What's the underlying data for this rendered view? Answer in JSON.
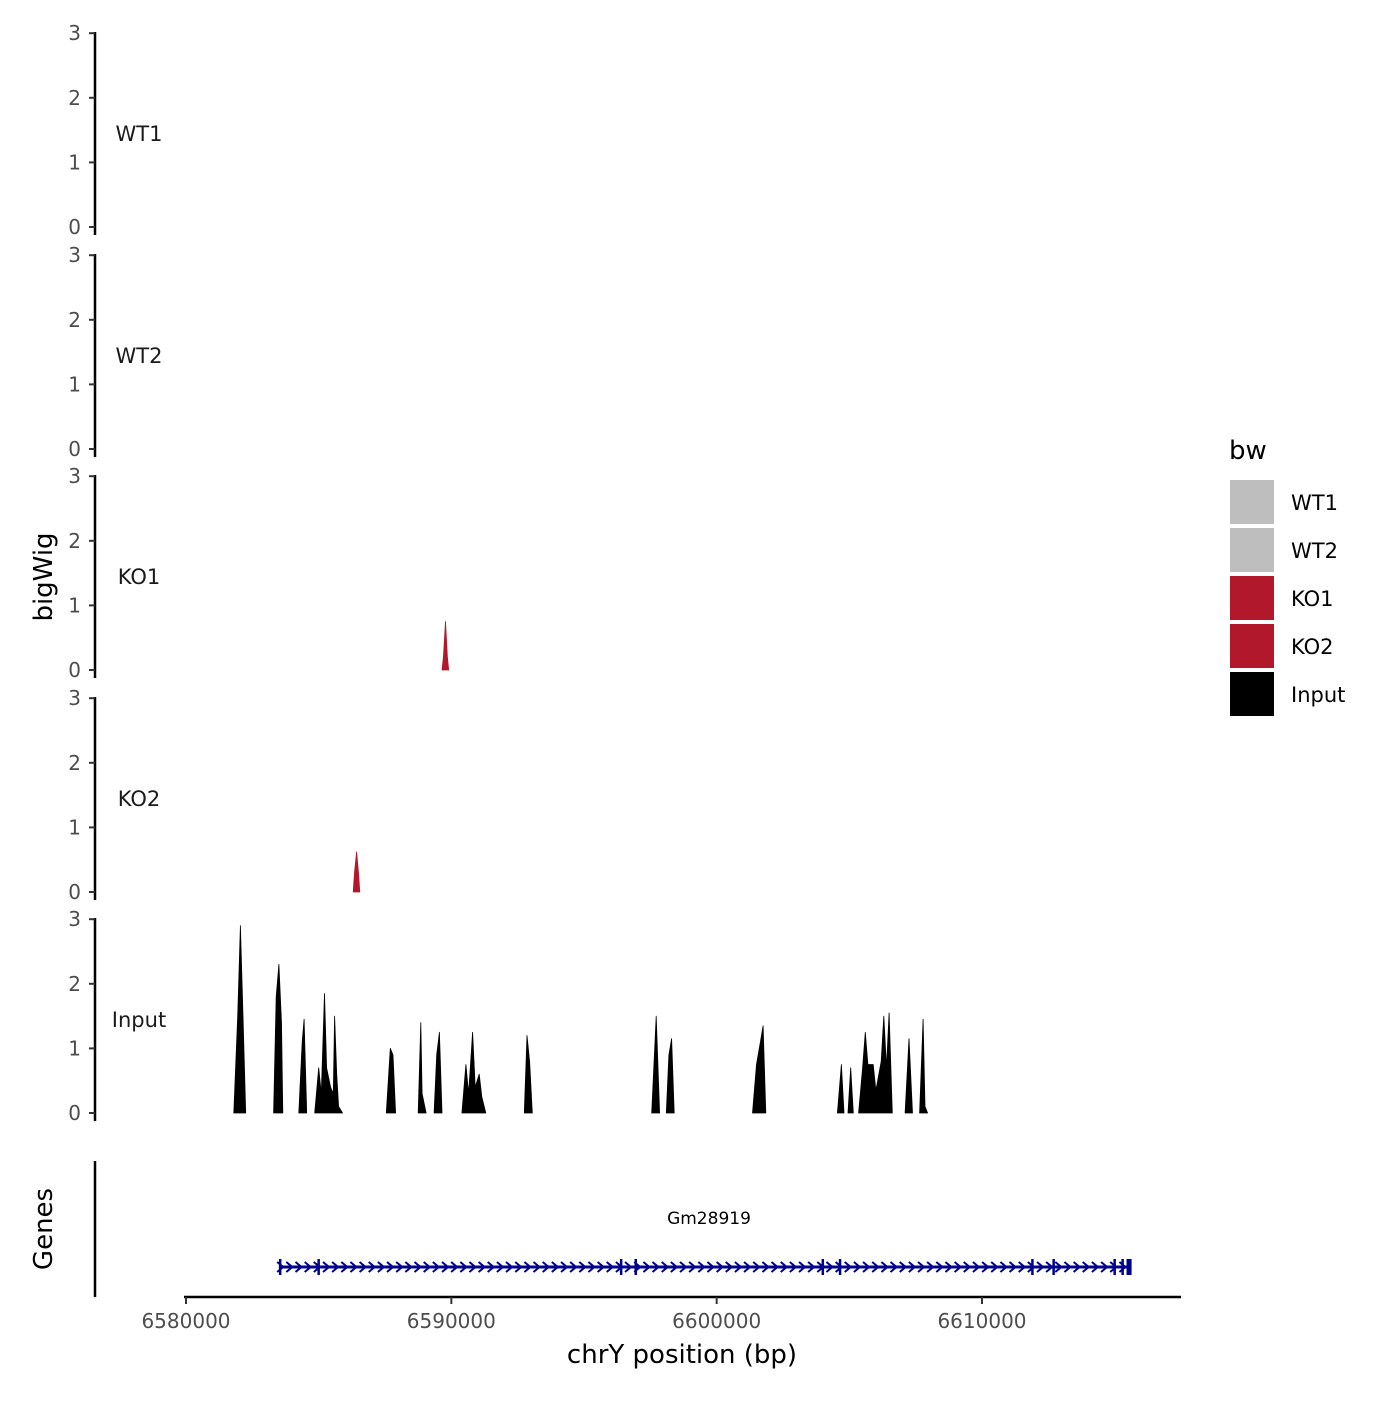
{
  "chart_data": {
    "type": "area",
    "ylabel": "bigWig",
    "xlabel": "chrY position (bp)",
    "genes_label": "Genes",
    "xlim": [
      6580000,
      6617500
    ],
    "ylim": [
      0,
      3
    ],
    "x_ticks": [
      6580000,
      6590000,
      6600000,
      6610000
    ],
    "x_tick_labels": [
      "6580000",
      "6590000",
      "6600000",
      "6610000"
    ],
    "y_ticks": [
      0,
      1,
      2,
      3
    ],
    "y_tick_labels": [
      "0",
      "1",
      "2",
      "3"
    ],
    "tracks": [
      {
        "name": "WT1",
        "label": "WT1",
        "color": "#bebebe",
        "peaks": []
      },
      {
        "name": "WT2",
        "label": "WT2",
        "color": "#bebebe",
        "peaks": []
      },
      {
        "name": "KO1",
        "label": "KO1",
        "color": "#b2182b",
        "peaks": [
          [
            [
              6589650,
              0
            ],
            [
              6589700,
              0.2
            ],
            [
              6589780,
              0.75
            ],
            [
              6589850,
              0.2
            ],
            [
              6589900,
              0
            ]
          ]
        ]
      },
      {
        "name": "KO2",
        "label": "KO2",
        "color": "#b2182b",
        "peaks": [
          [
            [
              6586300,
              0
            ],
            [
              6586350,
              0.3
            ],
            [
              6586430,
              0.62
            ],
            [
              6586500,
              0.3
            ],
            [
              6586550,
              0
            ]
          ]
        ]
      },
      {
        "name": "Input",
        "label": "Input",
        "color": "#000000",
        "peaks": [
          [
            [
              6581800,
              0
            ],
            [
              6581950,
              1.5
            ],
            [
              6582050,
              2.9
            ],
            [
              6582150,
              1.5
            ],
            [
              6582250,
              0
            ]
          ],
          [
            [
              6583300,
              0
            ],
            [
              6583400,
              1.8
            ],
            [
              6583500,
              2.3
            ],
            [
              6583600,
              1.4
            ],
            [
              6583650,
              0
            ]
          ],
          [
            [
              6584250,
              0
            ],
            [
              6584380,
              1.1
            ],
            [
              6584450,
              1.45
            ],
            [
              6584550,
              0
            ]
          ],
          [
            [
              6584850,
              0
            ],
            [
              6585000,
              0.7
            ],
            [
              6585100,
              0.3
            ],
            [
              6585220,
              1.85
            ],
            [
              6585300,
              0.7
            ],
            [
              6585450,
              0.4
            ],
            [
              6585550,
              0.3
            ],
            [
              6585600,
              1.5
            ],
            [
              6585680,
              0.6
            ],
            [
              6585750,
              0.1
            ],
            [
              6585900,
              0
            ]
          ],
          [
            [
              6587550,
              0
            ],
            [
              6587700,
              1.0
            ],
            [
              6587800,
              0.9
            ],
            [
              6587900,
              0
            ]
          ],
          [
            [
              6588750,
              0
            ],
            [
              6588850,
              1.4
            ],
            [
              6588900,
              0.3
            ],
            [
              6589050,
              0
            ]
          ],
          [
            [
              6589350,
              0
            ],
            [
              6589450,
              0.9
            ],
            [
              6589550,
              1.25
            ],
            [
              6589650,
              0
            ]
          ],
          [
            [
              6590400,
              0
            ],
            [
              6590550,
              0.75
            ],
            [
              6590650,
              0.3
            ],
            [
              6590800,
              1.25
            ],
            [
              6590900,
              0.4
            ],
            [
              6591050,
              0.6
            ],
            [
              6591150,
              0.25
            ],
            [
              6591300,
              0
            ]
          ],
          [
            [
              6592750,
              0
            ],
            [
              6592850,
              1.2
            ],
            [
              6592950,
              0.8
            ],
            [
              6593050,
              0
            ]
          ],
          [
            [
              6597550,
              0
            ],
            [
              6597720,
              1.5
            ],
            [
              6597850,
              0
            ]
          ],
          [
            [
              6598100,
              0
            ],
            [
              6598200,
              0.9
            ],
            [
              6598300,
              1.15
            ],
            [
              6598400,
              0
            ]
          ],
          [
            [
              6601350,
              0
            ],
            [
              6601500,
              0.75
            ],
            [
              6601650,
              1.1
            ],
            [
              6601750,
              1.35
            ],
            [
              6601850,
              0
            ]
          ],
          [
            [
              6604550,
              0
            ],
            [
              6604700,
              0.75
            ],
            [
              6604800,
              0
            ]
          ],
          [
            [
              6604950,
              0
            ],
            [
              6605050,
              0.7
            ],
            [
              6605150,
              0
            ]
          ],
          [
            [
              6605350,
              0
            ],
            [
              6605500,
              0.7
            ],
            [
              6605600,
              1.25
            ],
            [
              6605700,
              0.75
            ],
            [
              6605900,
              0.75
            ],
            [
              6606000,
              0.35
            ],
            [
              6606200,
              0.8
            ],
            [
              6606300,
              1.5
            ],
            [
              6606400,
              0.7
            ],
            [
              6606500,
              1.55
            ],
            [
              6606620,
              0
            ]
          ],
          [
            [
              6607100,
              0
            ],
            [
              6607250,
              1.15
            ],
            [
              6607380,
              0
            ]
          ],
          [
            [
              6607650,
              0
            ],
            [
              6607780,
              1.45
            ],
            [
              6607850,
              0.1
            ],
            [
              6607950,
              0
            ]
          ]
        ]
      }
    ],
    "gene": {
      "name": "Gm28919",
      "start": 6583500,
      "end": 6615600,
      "strand": "+",
      "color": "#00008b",
      "exons": [
        6583550,
        6585000,
        6596400,
        6596950,
        6604000,
        6604650,
        6611900,
        6612700,
        6615000,
        6615300,
        6615500
      ]
    },
    "legend": {
      "title": "bw",
      "position": "right",
      "entries": [
        {
          "label": "WT1",
          "color": "#bebebe"
        },
        {
          "label": "WT2",
          "color": "#bebebe"
        },
        {
          "label": "KO1",
          "color": "#b2182b"
        },
        {
          "label": "KO2",
          "color": "#b2182b"
        },
        {
          "label": "Input",
          "color": "#000000"
        }
      ]
    },
    "grid": false
  }
}
